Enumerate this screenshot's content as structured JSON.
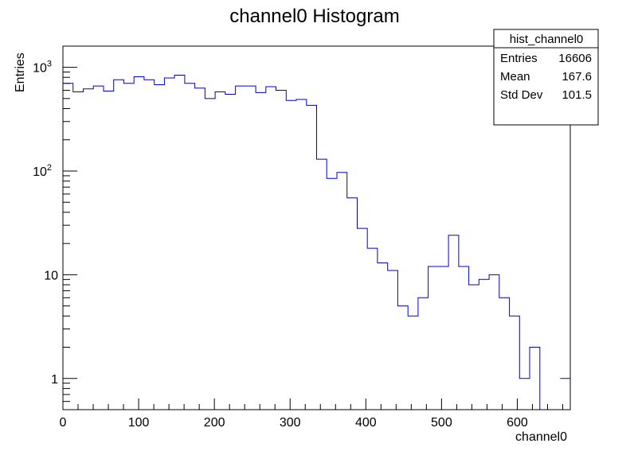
{
  "chart_data": {
    "type": "bar",
    "title": "channel0 Histogram",
    "xlabel": "channel0",
    "ylabel": "Entries",
    "x_scale": "linear",
    "y_scale": "log",
    "xlim": [
      0,
      670
    ],
    "ylim": [
      0.5,
      1600
    ],
    "bin_width": 13.4,
    "x_ticks": [
      0,
      100,
      200,
      300,
      400,
      500,
      600
    ],
    "y_ticks": [
      1,
      10,
      100,
      1000
    ],
    "y_tick_labels": [
      "1",
      "10",
      "10^2",
      "10^3"
    ],
    "grid": false,
    "line_color": "#0000cc",
    "values": [
      700,
      580,
      620,
      660,
      590,
      760,
      700,
      810,
      760,
      680,
      790,
      840,
      700,
      630,
      500,
      580,
      550,
      660,
      660,
      570,
      650,
      600,
      480,
      490,
      430,
      130,
      85,
      97,
      55,
      28,
      18,
      13,
      11,
      5,
      4,
      6,
      12,
      12,
      24,
      12,
      8,
      9,
      10,
      6,
      4,
      1,
      2,
      0,
      0,
      1
    ],
    "stats_box": {
      "name": "hist_channel0",
      "rows": [
        {
          "label": "Entries",
          "value": "16606"
        },
        {
          "label": "Mean",
          "value": "167.6"
        },
        {
          "label": "Std Dev",
          "value": "101.5"
        }
      ]
    }
  }
}
